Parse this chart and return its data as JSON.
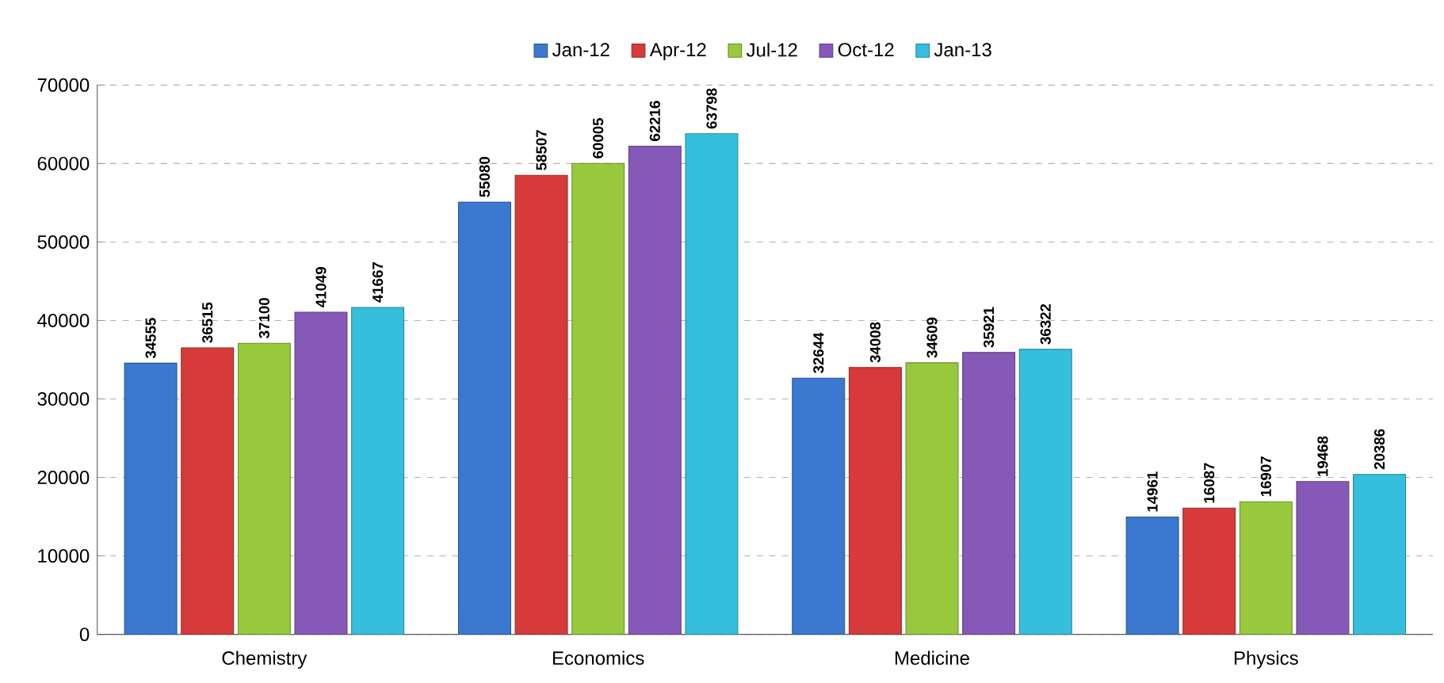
{
  "chart_data": {
    "type": "bar",
    "categories": [
      "Chemistry",
      "Economics",
      "Medicine",
      "Physics"
    ],
    "series": [
      {
        "name": "Jan-12",
        "color": "#3b78d0",
        "values": [
          34555,
          55080,
          32644,
          14961
        ]
      },
      {
        "name": "Apr-12",
        "color": "#d63a3a",
        "values": [
          36515,
          58507,
          34008,
          16087
        ]
      },
      {
        "name": "Jul-12",
        "color": "#98c93c",
        "values": [
          37100,
          60005,
          34609,
          16907
        ]
      },
      {
        "name": "Oct-12",
        "color": "#8659b8",
        "values": [
          41049,
          62216,
          35921,
          19468
        ]
      },
      {
        "name": "Jan-13",
        "color": "#35bfdc",
        "values": [
          41667,
          63798,
          36322,
          20386
        ]
      }
    ],
    "ylim": [
      0,
      70000
    ],
    "yticks": [
      0,
      10000,
      20000,
      30000,
      40000,
      50000,
      60000,
      70000
    ],
    "grid": "y",
    "legend": "top",
    "data_labels": true
  }
}
